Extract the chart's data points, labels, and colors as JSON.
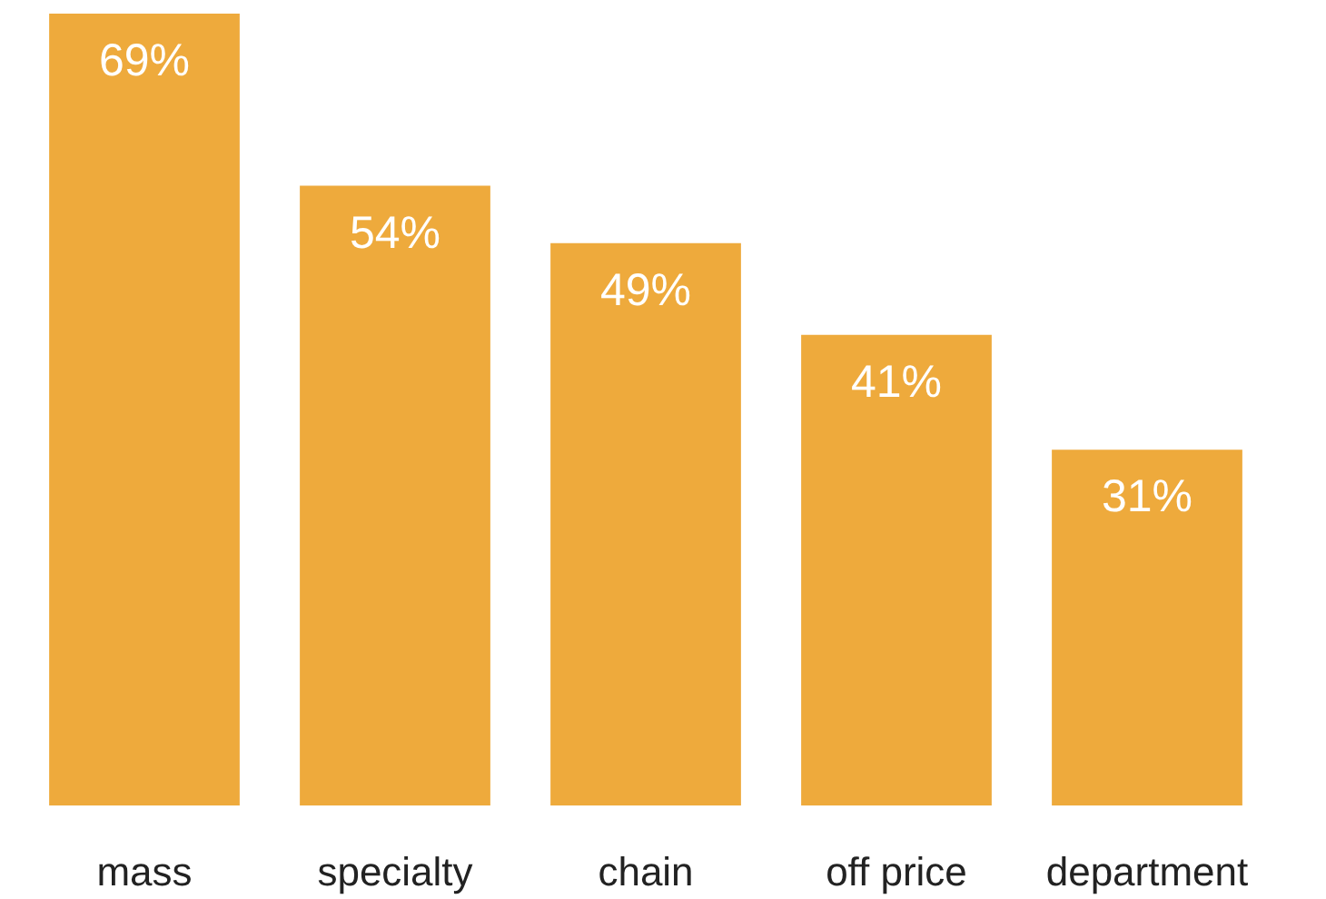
{
  "chart_data": {
    "type": "bar",
    "categories": [
      "mass",
      "specialty",
      "chain",
      "off price",
      "department"
    ],
    "values": [
      69,
      54,
      49,
      41,
      31
    ],
    "color": "#eeaa3c",
    "value_labels": [
      "69%",
      "54%",
      "49%",
      "41%",
      "31%"
    ],
    "grid": false
  }
}
